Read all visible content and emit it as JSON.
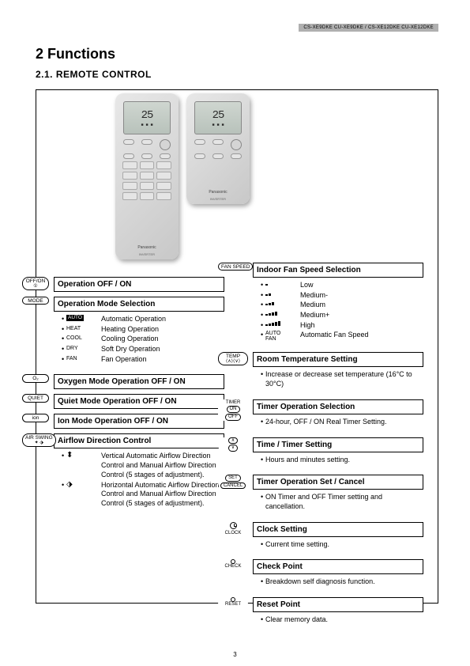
{
  "header_bar": "CS-XE9DKE CU-XE9DKE / CS-XE12DKE CU-XE12DKE",
  "h1": "2  Functions",
  "h2": "2.1.    REMOTE CONTROL",
  "remote": {
    "display_temp": "25",
    "brand": "Panasonic",
    "model": "INVERTER"
  },
  "left_sections": [
    {
      "badge_label": "OFF/ON",
      "badge_sub": "①",
      "title": "Operation OFF / ON",
      "items": []
    },
    {
      "badge_label": "MODE",
      "title": "Operation Mode Selection",
      "items": [
        {
          "icon_type": "auto",
          "icon": "AUTO",
          "desc": "Automatic Operation"
        },
        {
          "icon_type": "text",
          "icon": "HEAT",
          "desc": "Heating Operation"
        },
        {
          "icon_type": "text",
          "icon": "COOL",
          "desc": "Cooling Operation"
        },
        {
          "icon_type": "text",
          "icon": "DRY",
          "desc": "Soft Dry Operation"
        },
        {
          "icon_type": "text",
          "icon": "FAN",
          "desc": "Fan Operation"
        }
      ]
    },
    {
      "badge_label": "O₂",
      "title": "Oxygen Mode Operation OFF / ON",
      "items": []
    },
    {
      "badge_label": "QUIET",
      "title": "Quiet Mode Operation OFF / ON",
      "items": []
    },
    {
      "badge_label": "ion",
      "title": "Ion Mode Operation OFF / ON",
      "items": []
    },
    {
      "badge_label": "AIR SWING",
      "badge_sub": "✦ ⬗",
      "title": "Airflow Direction Control",
      "items": [
        {
          "icon_type": "arrow",
          "icon": "⬍",
          "desc": "Vertical Automatic Airflow Direction Control and Manual Airflow Direction Control (5 stages of adjustment)."
        },
        {
          "icon_type": "arrow",
          "icon": "⬗",
          "desc": "Horizontal Automatic Airflow Direction Control and Manual Airflow Direction Control (5 stages of adjustment)."
        }
      ]
    }
  ],
  "right_sections": [
    {
      "badge_label": "FAN SPEED",
      "title": "Indoor Fan Speed Selection",
      "items": [
        {
          "icon_type": "bars",
          "count": 1,
          "desc": "Low"
        },
        {
          "icon_type": "bars",
          "count": 2,
          "desc": "Medium-"
        },
        {
          "icon_type": "bars",
          "count": 3,
          "desc": "Medium"
        },
        {
          "icon_type": "bars",
          "count": 4,
          "desc": "Medium+"
        },
        {
          "icon_type": "bars",
          "count": 5,
          "desc": "High"
        },
        {
          "icon_type": "autofan",
          "icon": "AUTO\nFAN",
          "desc": "Automatic Fan Speed"
        }
      ]
    },
    {
      "badge_label": "TEMP",
      "badge_sub": "⟨∧⟩⟨∨⟩",
      "title": "Room Temperature Setting",
      "items": [
        {
          "icon_type": "none",
          "desc": "Increase or decrease set temperature (16°C to 30°C)"
        }
      ]
    },
    {
      "badge_label": "TIMER",
      "badge_stack": [
        "ON",
        "OFF"
      ],
      "title": "Timer Operation Selection",
      "items": [
        {
          "icon_type": "none",
          "desc": "24-hour, OFF / ON Real Timer Setting."
        }
      ]
    },
    {
      "badge_stack": [
        "∧",
        "∨"
      ],
      "title": "Time / Timer Setting",
      "items": [
        {
          "icon_type": "none",
          "desc": "Hours and minutes setting."
        }
      ]
    },
    {
      "badge_stack": [
        "SET",
        "CANCEL"
      ],
      "title": "Timer Operation Set / Cancel",
      "items": [
        {
          "icon_type": "none",
          "desc": "ON Timer and OFF Timer setting and cancellation."
        }
      ]
    },
    {
      "badge_label": "CLOCK",
      "badge_icon": "clock",
      "title": "Clock Setting",
      "items": [
        {
          "icon_type": "none",
          "desc": "Current time setting."
        }
      ]
    },
    {
      "badge_label": "CHECK",
      "badge_icon": "dot",
      "title": "Check Point",
      "items": [
        {
          "icon_type": "none",
          "desc": "Breakdown self diagnosis function."
        }
      ]
    },
    {
      "badge_label": "RESET",
      "badge_icon": "dot",
      "title": "Reset Point",
      "items": [
        {
          "icon_type": "none",
          "desc": "Clear memory data."
        }
      ]
    }
  ],
  "page_number": "3"
}
